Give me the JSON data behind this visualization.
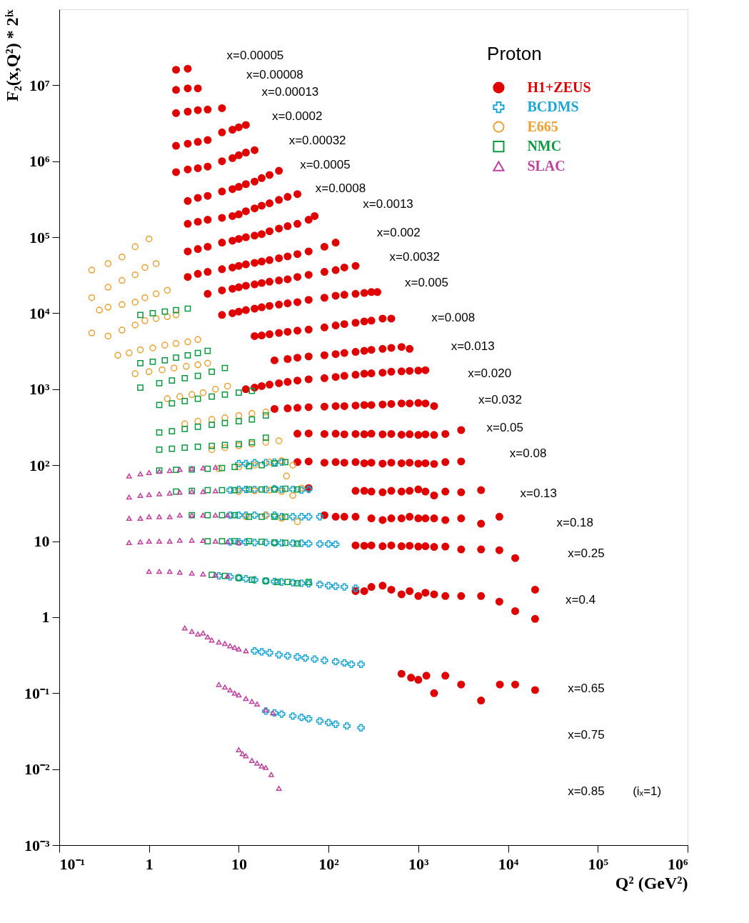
{
  "chart_data": {
    "type": "scatter",
    "xlabel": "Q² (GeV²)",
    "ylabel": "F₂(x,Q²) * 2ⁱˣ",
    "legend_title": "Proton",
    "legend": "top right",
    "log": "xy",
    "xlim": [
      0.1,
      1000000
    ],
    "ylim": [
      0.001,
      100000000
    ],
    "xticks": [
      {
        "value": 0.1,
        "label": "10⁻¹"
      },
      1,
      10,
      {
        "value": 100,
        "label": "10²"
      },
      {
        "value": 1000,
        "label": "10³"
      },
      {
        "value": 10000,
        "label": "10⁴"
      },
      {
        "value": 100000,
        "label": "10⁵"
      },
      {
        "value": 1000000,
        "label": "10⁶"
      }
    ],
    "yticks": [
      {
        "value": 0.001,
        "label": "10⁻³"
      },
      {
        "value": 0.01,
        "label": "10⁻²"
      },
      {
        "value": 0.1,
        "label": "10⁻¹"
      },
      1,
      10,
      {
        "value": 100,
        "label": "10²"
      },
      {
        "value": 1000,
        "label": "10³"
      },
      {
        "value": 10000,
        "label": "10⁴"
      },
      {
        "value": 100000,
        "label": "10⁵"
      },
      {
        "value": 1000000,
        "label": "10⁶"
      },
      {
        "value": 10000000,
        "label": "10⁷"
      }
    ],
    "series": [
      {
        "name": "H1+ZEUS",
        "color": "#e00000",
        "marker": "circle",
        "x": [
          2.0,
          2.7,
          2.0,
          2.7,
          3.5,
          2.0,
          2.7,
          3.5,
          4.5,
          6.5,
          2.0,
          2.7,
          3.5,
          4.5,
          6.5,
          8.5,
          10,
          12,
          2.0,
          2.7,
          3.5,
          4.5,
          6.5,
          8.5,
          10,
          12,
          15,
          2.7,
          3.5,
          4.5,
          6.5,
          8.5,
          10,
          12,
          15,
          18,
          22,
          28,
          2.7,
          3.5,
          4.5,
          6.5,
          8.5,
          10,
          12,
          15,
          18,
          22,
          28,
          35,
          45,
          2.7,
          3.5,
          4.5,
          6.5,
          8.5,
          10,
          12,
          15,
          18,
          22,
          28,
          35,
          45,
          60,
          70,
          2.7,
          3.5,
          4.5,
          6.5,
          8.5,
          10,
          12,
          15,
          18,
          22,
          28,
          35,
          45,
          60,
          90,
          120,
          4.5,
          6.5,
          8.5,
          10,
          12,
          15,
          18,
          22,
          28,
          35,
          45,
          60,
          90,
          120,
          150,
          200,
          6.5,
          8.5,
          10,
          12,
          15,
          18,
          22,
          28,
          35,
          45,
          60,
          90,
          120,
          150,
          200,
          250,
          300,
          350,
          15,
          18,
          22,
          28,
          35,
          45,
          60,
          90,
          120,
          150,
          200,
          250,
          300,
          400,
          500,
          25,
          35,
          45,
          60,
          90,
          120,
          150,
          200,
          250,
          300,
          400,
          500,
          650,
          800,
          12,
          15,
          18,
          22,
          28,
          35,
          45,
          60,
          90,
          120,
          150,
          200,
          250,
          300,
          400,
          500,
          650,
          800,
          1000,
          1200,
          25,
          35,
          45,
          60,
          90,
          120,
          150,
          200,
          250,
          300,
          400,
          500,
          650,
          800,
          1000,
          1200,
          1500,
          45,
          60,
          90,
          120,
          150,
          200,
          250,
          300,
          400,
          500,
          650,
          800,
          1000,
          1200,
          1500,
          2000,
          3000,
          45,
          60,
          90,
          120,
          150,
          200,
          250,
          300,
          400,
          500,
          650,
          800,
          1000,
          1200,
          1500,
          2000,
          3000,
          60,
          200,
          250,
          300,
          400,
          500,
          650,
          800,
          1000,
          1200,
          1500,
          2000,
          3000,
          5000,
          90,
          120,
          150,
          200,
          300,
          400,
          500,
          650,
          800,
          1000,
          1200,
          1500,
          2000,
          3000,
          5000,
          8000,
          200,
          250,
          300,
          400,
          500,
          650,
          800,
          1000,
          1200,
          1500,
          2000,
          3000,
          5000,
          8000,
          12000,
          200,
          250,
          300,
          400,
          500,
          650,
          800,
          1000,
          1200,
          1500,
          2000,
          3000,
          5000,
          8000,
          12000,
          20000,
          20000,
          650,
          830,
          1000,
          1230,
          1500,
          2000,
          3000,
          5000,
          8100,
          12000,
          20000
        ],
        "values": [
          16000000.0,
          16500000.0,
          8700000.0,
          9100000.0,
          9100000.0,
          4300000.0,
          4500000.0,
          4700000.0,
          4800000.0,
          5000000.0,
          1600000.0,
          1700000.0,
          1800000.0,
          1900000.0,
          2400000.0,
          2600000.0,
          2800000.0,
          3000000.0,
          720000.0,
          780000.0,
          810000.0,
          850000.0,
          1000000.0,
          1100000.0,
          1200000.0,
          1300000.0,
          1400000.0,
          300000.0,
          330000.0,
          350000.0,
          400000.0,
          430000.0,
          460000.0,
          500000.0,
          540000.0,
          600000.0,
          660000.0,
          750000.0,
          150000.0,
          160000.0,
          170000.0,
          180000.0,
          190000.0,
          200000.0,
          220000.0,
          240000.0,
          260000.0,
          280000.0,
          310000.0,
          340000.0,
          370000.0,
          65000.0,
          70000.0,
          75000.0,
          85000.0,
          90000.0,
          95000.0,
          100000.0,
          105000.0,
          110000.0,
          120000.0,
          130000.0,
          140000.0,
          150000.0,
          170000.0,
          190000.0,
          30000.0,
          33000.0,
          35000.0,
          38000.0,
          40000.0,
          42000.0,
          44000.0,
          46000.0,
          48000.0,
          50000.0,
          53000.0,
          56000.0,
          60000.0,
          65000.0,
          75000.0,
          85000.0,
          18000.0,
          20000.0,
          21000.0,
          22000.0,
          23000.0,
          24000.0,
          25000.0,
          26000.0,
          27000.0,
          28000.0,
          30000.0,
          32000.0,
          35000.0,
          37000.0,
          40000.0,
          42000.0,
          9500.0,
          10000.0,
          10500.0,
          11000.0,
          11500.0,
          12000.0,
          12500.0,
          13000.0,
          13500.0,
          14000.0,
          15000.0,
          16000.0,
          17000.0,
          17500.0,
          18000.0,
          18500.0,
          19000.0,
          19000.0,
          5000.0,
          5100.0,
          5300.0,
          5500.0,
          5700.0,
          5900.0,
          6100.0,
          6500.0,
          6900.0,
          7200.0,
          7500.0,
          7800.0,
          8000.0,
          8500.0,
          8500.0,
          2400.0,
          2500.0,
          2600.0,
          2700.0,
          2800.0,
          2900.0,
          3000.0,
          3100.0,
          3200.0,
          3300.0,
          3400.0,
          3500.0,
          3600.0,
          3400.0,
          1000.0,
          1050.0,
          1100.0,
          1150.0,
          1200.0,
          1250.0,
          1300.0,
          1350.0,
          1400.0,
          1450.0,
          1500.0,
          1550.0,
          1600.0,
          1620.0,
          1650.0,
          1700.0,
          1720.0,
          1740.0,
          1760.0,
          1780.0,
          550,
          560,
          570,
          580,
          590,
          600,
          600,
          610,
          620,
          620,
          630,
          640,
          650,
          650,
          660,
          650,
          600,
          260,
          262,
          258,
          260,
          255,
          258,
          256,
          260,
          255,
          258,
          252,
          256,
          250,
          255,
          250,
          258,
          290,
          110,
          112,
          108,
          110,
          108,
          110,
          106,
          108,
          105,
          108,
          106,
          108,
          105,
          106,
          104,
          110,
          112,
          50,
          46,
          46,
          45,
          44,
          46,
          45,
          46,
          48,
          45,
          40,
          45,
          44,
          47,
          22,
          21,
          21,
          21,
          20,
          19,
          20,
          20,
          21,
          20,
          20,
          20,
          19,
          20,
          17,
          21,
          8.8,
          8.7,
          8.8,
          8.6,
          8.8,
          8.6,
          8.7,
          8.5,
          8.6,
          8.4,
          8.5,
          7.8,
          7.8,
          7.6,
          6.0,
          2.2,
          2.2,
          2.5,
          2.6,
          2.3,
          2.0,
          2.2,
          1.9,
          2.1,
          2.0,
          1.9,
          1.9,
          1.9,
          1.6,
          1.2,
          2.3,
          0.95,
          0.18,
          0.16,
          0.15,
          0.17,
          0.1,
          0.17,
          0.13,
          0.08,
          0.13,
          0.13,
          0.11
        ]
      },
      {
        "name": "BCDMS",
        "color": "#19a6d9",
        "marker": "cross",
        "x": [
          10,
          12,
          15,
          20,
          25,
          30,
          8,
          10,
          12,
          15,
          20,
          25,
          30,
          40,
          50,
          60,
          8,
          10,
          12,
          15,
          20,
          25,
          30,
          40,
          50,
          60,
          80,
          8,
          10,
          12,
          15,
          20,
          25,
          30,
          40,
          50,
          60,
          80,
          100,
          120,
          6,
          8,
          10,
          12,
          15,
          20,
          25,
          30,
          40,
          50,
          60,
          80,
          100,
          120,
          150,
          200,
          15,
          18,
          22,
          28,
          35,
          45,
          55,
          70,
          90,
          120,
          150,
          180,
          230,
          20,
          25,
          30,
          40,
          50,
          60,
          80,
          100,
          120,
          160,
          230
        ],
        "values": [
          105,
          105,
          108,
          108,
          110,
          110,
          47,
          48,
          48,
          48,
          48,
          49,
          48,
          48,
          47,
          48,
          22,
          22,
          22,
          22,
          22,
          22,
          21,
          21,
          21,
          21,
          21,
          9.8,
          9.8,
          9.7,
          9.6,
          9.6,
          9.5,
          9.5,
          9.4,
          9.4,
          9.3,
          9.2,
          9.2,
          9.1,
          3.5,
          3.4,
          3.3,
          3.2,
          3.1,
          3.0,
          2.95,
          2.9,
          2.85,
          2.8,
          2.75,
          2.7,
          2.6,
          2.55,
          2.5,
          2.4,
          0.36,
          0.35,
          0.34,
          0.32,
          0.31,
          0.3,
          0.29,
          0.28,
          0.27,
          0.26,
          0.25,
          0.24,
          0.24,
          0.058,
          0.055,
          0.053,
          0.05,
          0.048,
          0.046,
          0.043,
          0.041,
          0.039,
          0.037,
          0.035
        ]
      },
      {
        "name": "E665",
        "color": "#f0a030",
        "marker": "circle",
        "x": [
          0.23,
          0.35,
          0.5,
          0.7,
          1.0,
          0.23,
          0.35,
          0.5,
          0.7,
          0.9,
          1.2,
          0.28,
          0.35,
          0.5,
          0.7,
          0.9,
          1.2,
          1.6,
          0.23,
          0.35,
          0.5,
          0.7,
          0.9,
          1.2,
          1.6,
          2.0,
          0.45,
          0.6,
          0.8,
          1.1,
          1.5,
          2.0,
          2.7,
          3.5,
          0.7,
          1.0,
          1.4,
          1.9,
          2.6,
          3.5,
          4.5,
          1.6,
          2.2,
          3.0,
          4.0,
          5.5,
          7.5,
          2.5,
          3.5,
          5,
          7,
          10,
          14,
          20,
          5,
          7,
          10,
          14,
          20,
          28,
          6,
          10,
          15,
          22,
          30,
          34,
          40,
          10,
          15,
          22,
          30,
          40,
          50,
          12,
          20,
          30,
          45
        ],
        "values": [
          37000.0,
          45000.0,
          55000.0,
          75000.0,
          95000.0,
          16000.0,
          22000.0,
          27000.0,
          32000.0,
          40000.0,
          45000.0,
          11000.0,
          12000.0,
          13000.0,
          14000.0,
          16000.0,
          18000.0,
          20000.0,
          5500.0,
          5000.0,
          6000.0,
          7000.0,
          8000.0,
          8500.0,
          9000.0,
          9500.0,
          2800.0,
          3000.0,
          3300.0,
          3500.0,
          3800.0,
          4000.0,
          4200.0,
          4500.0,
          1600.0,
          1700.0,
          1800.0,
          1900.0,
          2000.0,
          2100.0,
          2200.0,
          750,
          800,
          850,
          900,
          1000,
          1100,
          350,
          380,
          400,
          420,
          450,
          480,
          500,
          160,
          170,
          180,
          190,
          200,
          210,
          90,
          95,
          100,
          110,
          115,
          72,
          100,
          45,
          46,
          47,
          45,
          40,
          50,
          21,
          22,
          20,
          18
        ]
      },
      {
        "name": "NMC",
        "color": "#0a9a40",
        "marker": "square",
        "x": [
          0.8,
          1.1,
          1.5,
          2.0,
          2.7,
          0.8,
          1.1,
          1.5,
          2.0,
          2.7,
          3.5,
          4.5,
          0.8,
          1.3,
          1.8,
          2.5,
          3.5,
          5,
          7,
          1.3,
          1.8,
          2.5,
          3.5,
          5,
          7,
          10,
          14,
          1.3,
          1.8,
          2.5,
          3.5,
          5,
          7,
          10,
          14,
          20,
          1.3,
          1.8,
          2.5,
          3.5,
          5,
          7,
          10,
          14,
          20,
          1.3,
          2.0,
          3,
          4.5,
          6.5,
          9,
          13,
          18,
          25,
          33,
          2,
          3,
          4.5,
          6.5,
          9,
          13,
          18,
          25,
          33,
          45,
          3,
          4.5,
          6.5,
          9,
          13,
          18,
          25,
          33,
          4.5,
          6.5,
          9,
          13,
          18,
          25,
          33,
          45,
          5,
          7,
          10,
          14,
          20,
          27,
          35,
          45,
          60
        ],
        "values": [
          9500.0,
          10000.0,
          10500.0,
          11000.0,
          11500.0,
          2200.0,
          2300.0,
          2400.0,
          2600.0,
          2800.0,
          3000.0,
          3200.0,
          1050.0,
          1200.0,
          1300.0,
          1400.0,
          1500.0,
          1700.0,
          1900.0,
          620,
          650,
          700,
          750,
          800,
          850,
          900,
          950,
          270,
          280,
          300,
          320,
          340,
          360,
          380,
          400,
          450,
          160,
          165,
          170,
          175,
          180,
          185,
          190,
          200,
          230,
          85,
          87,
          88,
          90,
          92,
          95,
          97,
          100,
          105,
          110,
          45,
          46,
          47,
          47,
          47,
          48,
          48,
          48,
          49,
          48,
          22,
          22,
          22,
          22,
          21,
          21,
          21,
          21,
          10,
          10,
          10,
          10,
          9.8,
          9.6,
          9.5,
          9.3,
          3.6,
          3.5,
          3.3,
          3.1,
          3.0,
          2.9,
          2.9,
          2.8,
          2.9
        ]
      },
      {
        "name": "SLAC",
        "color": "#c040a0",
        "marker": "triangle",
        "x": [
          0.6,
          0.8,
          1.0,
          1.3,
          1.7,
          2.2,
          3,
          4,
          5.5,
          0.6,
          0.8,
          1.0,
          1.3,
          1.7,
          2.2,
          3,
          4,
          5.5,
          0.6,
          0.8,
          1.0,
          1.3,
          1.7,
          2.2,
          3,
          4,
          5.5,
          7.5,
          0.6,
          0.8,
          1.0,
          1.3,
          1.7,
          2.2,
          3,
          4,
          5.5,
          7.5,
          10,
          1.0,
          1.3,
          1.7,
          2.2,
          3,
          4,
          5.5,
          7.5,
          2.5,
          3,
          3.5,
          4,
          4.5,
          5,
          6,
          7,
          8,
          9,
          10,
          12,
          6,
          7,
          8,
          9,
          10,
          12,
          14,
          16,
          20,
          24,
          10,
          11,
          12,
          14,
          16,
          18,
          20,
          23,
          28
        ],
        "values": [
          72,
          77,
          80,
          83,
          85,
          88,
          90,
          92,
          94,
          38,
          40,
          41,
          42,
          43,
          44,
          45,
          45,
          46,
          20,
          20,
          21,
          21,
          21,
          22,
          22,
          22,
          22,
          22,
          9.6,
          9.8,
          10,
          10,
          10,
          10.3,
          10.3,
          10.2,
          10,
          9.8,
          9.6,
          4.0,
          4.0,
          4.0,
          3.9,
          3.8,
          3.7,
          3.6,
          3.5,
          0.72,
          0.65,
          0.6,
          0.62,
          0.55,
          0.5,
          0.47,
          0.45,
          0.42,
          0.4,
          0.38,
          0.36,
          0.13,
          0.12,
          0.11,
          0.1,
          0.095,
          0.085,
          0.078,
          0.072,
          0.06,
          0.055,
          0.018,
          0.016,
          0.015,
          0.013,
          0.012,
          0.011,
          0.0105,
          0.0085,
          0.0056
        ]
      }
    ],
    "annotations": [
      "x=0.00005",
      "x=0.00008",
      "x=0.00013",
      "x=0.0002",
      "x=0.00032",
      "x=0.0005",
      "x=0.0008",
      "x=0.0013",
      "x=0.002",
      "x=0.0032",
      "x=0.005",
      "x=0.008",
      "x=0.013",
      "x=0.020",
      "x=0.032",
      "x=0.05",
      "x=0.08",
      "x=0.13",
      "x=0.18",
      "x=0.25",
      "x=0.4",
      "x=0.65",
      "x=0.75",
      "x=0.85",
      "(iₓ=1)"
    ]
  }
}
